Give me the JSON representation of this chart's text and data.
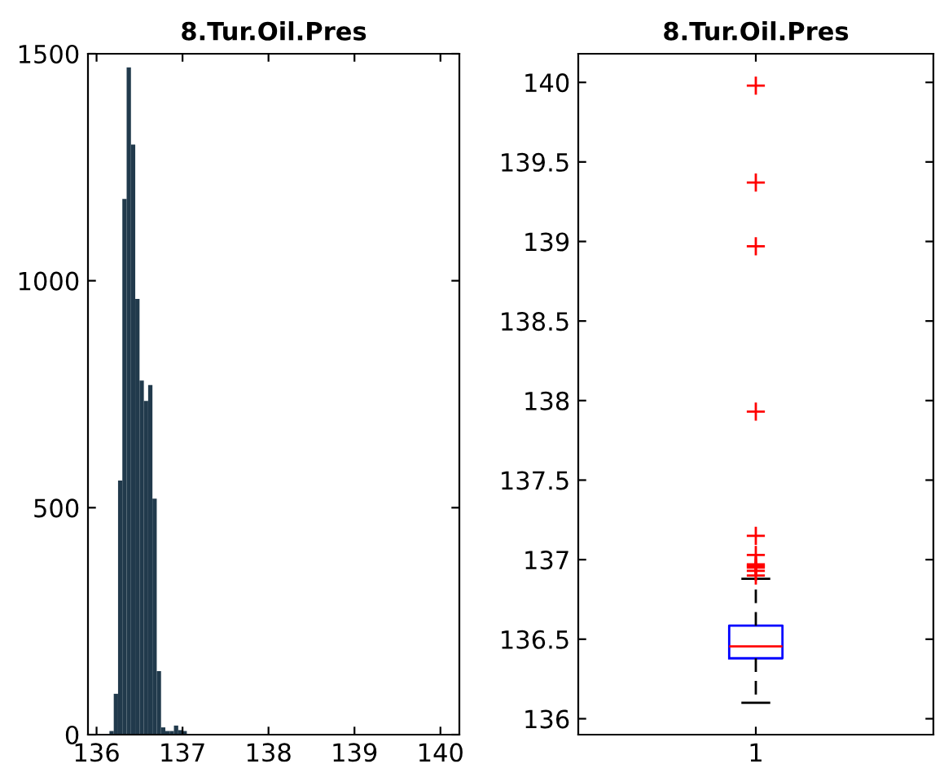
{
  "chart_data": [
    {
      "type": "histogram",
      "title": "8.Tur.Oil.Pres",
      "color": "#213a4c",
      "bins": [
        136.15,
        136.2,
        136.25,
        136.3,
        136.35,
        136.4,
        136.45,
        136.5,
        136.55,
        136.6,
        136.65,
        136.7,
        136.75,
        136.8,
        136.85,
        136.9,
        136.95,
        137.0,
        137.05
      ],
      "values": [
        8,
        90,
        560,
        1180,
        1470,
        1300,
        960,
        780,
        735,
        770,
        520,
        140,
        16,
        8,
        8,
        20,
        10,
        8
      ],
      "xlim": [
        135.9,
        140.22
      ],
      "xticks": [
        136,
        137,
        138,
        139,
        140
      ],
      "ylim": [
        0,
        1500
      ],
      "yticks": [
        0,
        500,
        1000,
        1500
      ],
      "grid": false
    },
    {
      "type": "box",
      "title": "8.Tur.Oil.Pres",
      "color": "#0000ff",
      "categories": [
        "1"
      ],
      "boxes": [
        {
          "low": 136.1,
          "q1": 136.38,
          "median": 136.455,
          "q3": 136.585,
          "high": 136.88,
          "outliers": [
            139.98,
            139.37,
            138.97,
            137.93,
            137.15,
            137.03,
            136.97,
            136.96,
            136.95,
            136.93,
            136.9
          ]
        }
      ],
      "ylim": [
        135.9,
        140.18
      ],
      "yticks": [
        136,
        136.5,
        137,
        137.5,
        138,
        138.5,
        139,
        139.5,
        140
      ],
      "grid": false
    }
  ]
}
